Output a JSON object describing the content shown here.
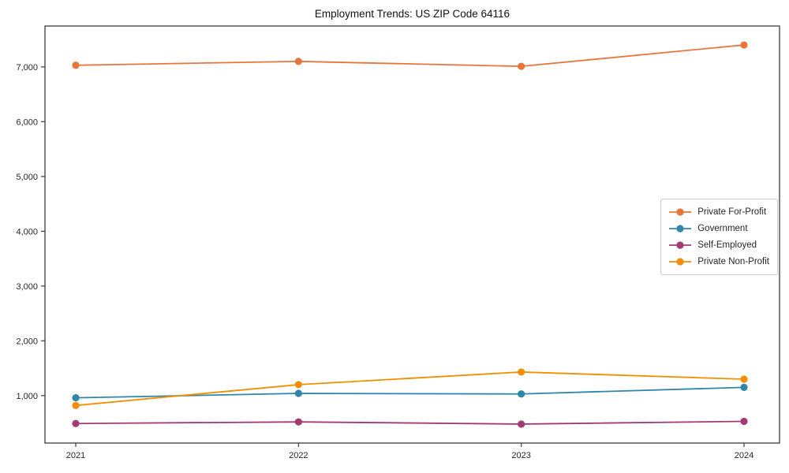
{
  "chart_data": {
    "type": "line",
    "title": "Employment Trends: US ZIP Code 64116",
    "x": [
      2021,
      2022,
      2023,
      2024
    ],
    "xtick_labels": [
      "2021",
      "2022",
      "2023",
      "2024"
    ],
    "yticks": [
      1000,
      2000,
      3000,
      4000,
      5000,
      6000,
      7000
    ],
    "ytick_labels": [
      "1,000",
      "2,000",
      "3,000",
      "4,000",
      "5,000",
      "6,000",
      "7,000"
    ],
    "ylim": [
      134,
      7746
    ],
    "grid": false,
    "legend_position": "center-right",
    "axis_color": "#3d3d3d",
    "series": [
      {
        "name": "Private For-Profit",
        "color": "#E8763B",
        "values": [
          7030,
          7100,
          7010,
          7400
        ]
      },
      {
        "name": "Government",
        "color": "#2E86AB",
        "values": [
          960,
          1040,
          1030,
          1150
        ]
      },
      {
        "name": "Self-Employed",
        "color": "#A23B72",
        "values": [
          490,
          520,
          480,
          530
        ]
      },
      {
        "name": "Private Non-Profit",
        "color": "#F18F01",
        "values": [
          820,
          1200,
          1430,
          1300
        ]
      }
    ]
  }
}
